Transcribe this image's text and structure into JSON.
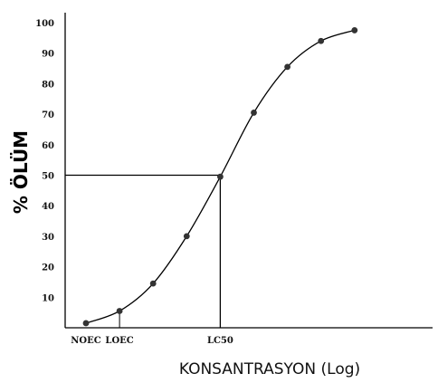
{
  "chart_data": {
    "type": "line",
    "xlabel": "KONSANTRASYON (Log)",
    "ylabel": "% ÖLÜM",
    "ylim": [
      0,
      100
    ],
    "yticks": [
      10,
      20,
      30,
      40,
      50,
      60,
      70,
      80,
      90,
      100
    ],
    "x_annotations": [
      {
        "label": "NOEC",
        "x": 1
      },
      {
        "label": "LOEC",
        "x": 2
      },
      {
        "label": "LC50",
        "x": 5
      }
    ],
    "reference_line": {
      "x": 5,
      "y": 50
    },
    "series": [
      {
        "x": [
          1,
          2,
          3,
          4,
          5,
          6,
          7,
          8,
          9
        ],
        "values": [
          1.5,
          5.5,
          14.5,
          30,
          49.5,
          70.5,
          85.5,
          94,
          97.5
        ]
      }
    ],
    "grid": false,
    "colors": {
      "line": "#000000",
      "marker": "#333333"
    }
  }
}
